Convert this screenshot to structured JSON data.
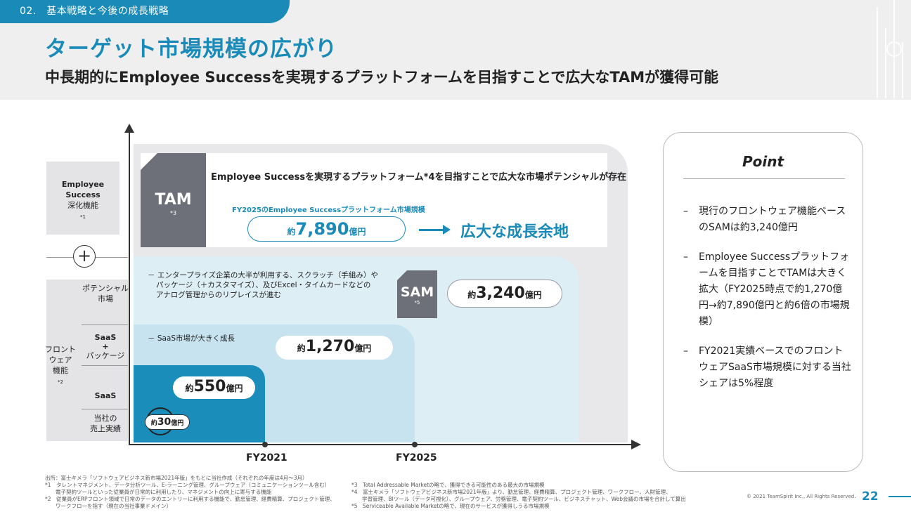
{
  "header": {
    "section": "02.　基本戦略と今後の成長戦略",
    "title": "ターゲット市場規模の広がり",
    "subtitle": "中長期的にEmployee Successを実現するプラットフォームを目指すことで広大なTAMが獲得可能"
  },
  "left_labels": {
    "es_line1": "Employee",
    "es_line2": "Success",
    "es_line3": "深化機能",
    "es_note": "*1",
    "plus": "+",
    "potential_line1": "ポテンシャル",
    "potential_line2": "市場",
    "saas_pkg_line1": "SaaS",
    "saas_pkg_line2": "+",
    "saas_pkg_line3": "パッケージ",
    "saas": "SaaS",
    "own_line1": "当社の",
    "own_line2": "売上実績",
    "front_line1": "フロント",
    "front_line2": "ウェア",
    "front_line3": "機能",
    "front_note": "*2"
  },
  "chart": {
    "x_labels": [
      "FY2021",
      "FY2025"
    ],
    "tam": {
      "label": "TAM",
      "note": "*3",
      "description": "Employee Successを実現するプラットフォーム*4を目指すことで広大な市場ポテンシャルが存在",
      "sub_label": "FY2025のEmployee Successプラットフォーム市場規模",
      "prefix": "約",
      "value": "7,890",
      "unit": "億円",
      "growth_text": "広大な成長余地"
    },
    "sam": {
      "label": "SAM",
      "note": "*5",
      "prefix": "約",
      "value": "3,240",
      "unit": "億円",
      "note_line1": "－ エンタープライズ企業の大半が利用する、スクラッチ（手組み）や",
      "note_line2": "パッケージ（＋カスタマイズ）、及びExcel・タイムカードなどの",
      "note_line3": "アナログ管理からのリプレイスが進む"
    },
    "saas_2025": {
      "note": "－ SaaS市場が大きく成長",
      "prefix": "約",
      "value": "1,270",
      "unit": "億円"
    },
    "saas_2021": {
      "prefix": "約",
      "value": "550",
      "unit": "億円"
    },
    "own": {
      "prefix": "約",
      "value": "30",
      "unit": "億円"
    }
  },
  "chart_data": {
    "type": "area",
    "x": [
      "FY2021",
      "FY2025"
    ],
    "series": [
      {
        "name": "TAM",
        "values": [
          null,
          7890
        ]
      },
      {
        "name": "SAM",
        "values": [
          null,
          3240
        ]
      },
      {
        "name": "SaaS",
        "values": [
          550,
          1270
        ]
      },
      {
        "name": "当社の売上実績",
        "values": [
          30,
          null
        ]
      }
    ],
    "unit": "億円"
  },
  "point": {
    "title": "Point",
    "items": [
      "現行のフロントウェア機能ベースのSAMは約3,240億円",
      "Employee Successプラットフォームを目指すことでTAMは大きく拡大（FY2025時点で約1,270億円→約7,890億円と約6倍の市場規模）",
      "FY2021実績ベースでのフロントウェアSaaS市場規模に対する当社シェアは5%程度"
    ]
  },
  "footnotes": {
    "source": "出所：富士キメラ「ソフトウェアビジネス新市場2021年版」をもとに当社作成（それぞれの年度は4月～3月）",
    "n1a": "*1　タレントマネジメント、データ分析ツール、E-ラーニング管理、グループウェア（コミュニケーションツール含む）",
    "n1b": "　　電子契約ツールといった従業員が日常的に利用したり、マネジメントの向上に寄与する機能",
    "n2a": "*2　従業員がERPフロント領域で日常のデータのエントリーに利用する機能で、勤怠管理、経費精算、プロジェクト管理、",
    "n2b": "　　ワークフローを指す（現在の当社事業ドメイン）",
    "n3": "*3　Total Addressable Marketの略で、獲得できる可能性のある最大の市場規模",
    "n4a": "*4　富士キメラ「ソフトウェアビジネス新市場2021年版」より、勤怠管理、経費精算、プロジェクト管理、ワークフロー、人財管理、",
    "n4b": "　　学習管理、BIツール（データ可視化）、グループウェア、労務管理、電子契約ツール、ビジネスチャット、Web会議の市場を合計して算出",
    "n5": "*5　Serviceable Available Marketの略で、現在のサービスが獲得しうる市場規模"
  },
  "copyright": "© 2021 TeamSpirit Inc., All Rights Reserved.",
  "page_number": "22",
  "colors": {
    "accent": "#1a8bb8",
    "badge_grey": "#6d6f79"
  }
}
